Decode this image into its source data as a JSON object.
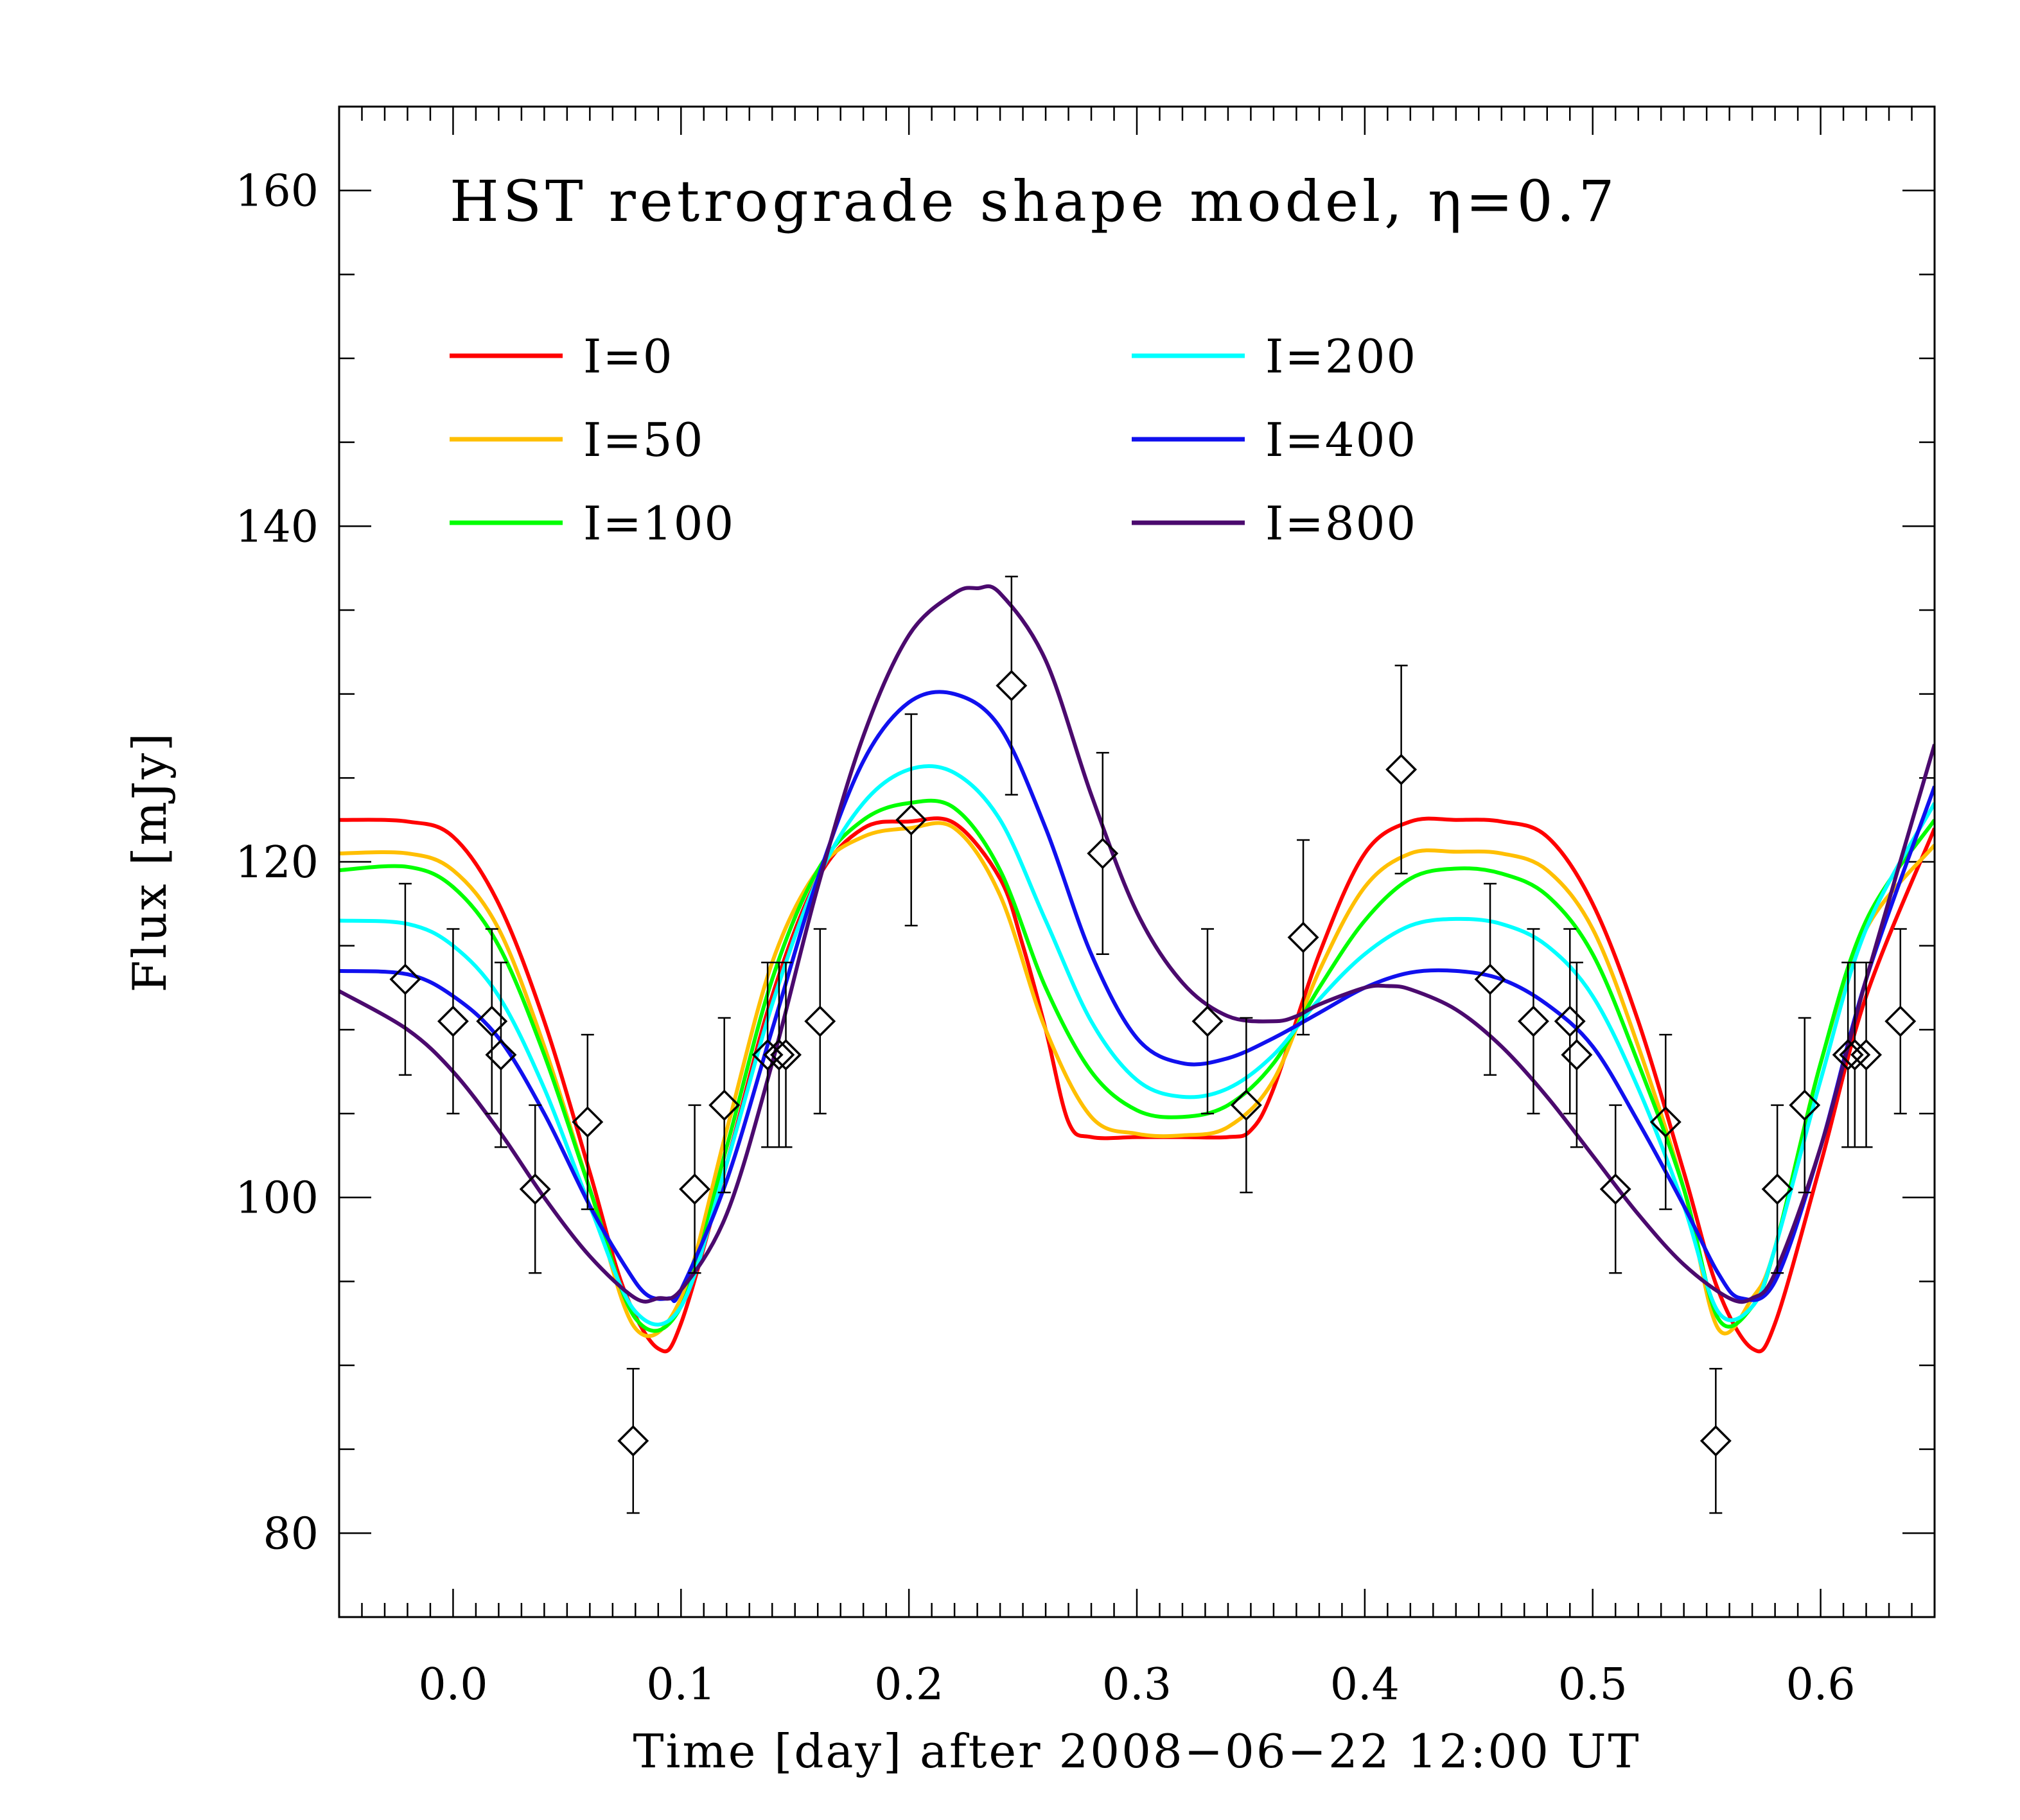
{
  "chart_data": {
    "type": "line",
    "title": "HST retrograde shape model, η=0.7",
    "xlabel": "Time [day] after 2008−06−22 12:00 UT",
    "ylabel": "Flux [mJy]",
    "xlim": [
      -0.05,
      0.65
    ],
    "ylim": [
      75,
      165
    ],
    "x_ticks": [
      "0.0",
      "0.1",
      "0.2",
      "0.3",
      "0.4",
      "0.5",
      "0.6"
    ],
    "x_tick_values": [
      0.0,
      0.1,
      0.2,
      0.3,
      0.4,
      0.5,
      0.6
    ],
    "y_ticks": [
      "80",
      "100",
      "120",
      "140",
      "160"
    ],
    "y_tick_values": [
      80,
      100,
      120,
      140,
      160
    ],
    "legend_position": "top",
    "series": [
      {
        "name": "I=0",
        "color": "#ff0000",
        "x": [
          -0.05,
          -0.02,
          0.0,
          0.02,
          0.04,
          0.06,
          0.075,
          0.09,
          0.1,
          0.12,
          0.14,
          0.16,
          0.18,
          0.2,
          0.22,
          0.24,
          0.25,
          0.26,
          0.27,
          0.28,
          0.3,
          0.32,
          0.34,
          0.35,
          0.36,
          0.38,
          0.4,
          0.42,
          0.44,
          0.46,
          0.48,
          0.5,
          0.52,
          0.54,
          0.555,
          0.57,
          0.58,
          0.6,
          0.62,
          0.65
        ],
        "y": [
          122.5,
          122.4,
          121.5,
          117.5,
          110.5,
          101.5,
          94.5,
          91.0,
          92.5,
          102,
          112,
          119,
          122,
          122.4,
          122.3,
          119,
          115,
          110,
          104.5,
          103.6,
          103.6,
          103.6,
          103.6,
          104.0,
          106.5,
          114.5,
          120.5,
          122.4,
          122.5,
          122.4,
          121.5,
          117.5,
          110.5,
          101.5,
          94.5,
          91.0,
          92.5,
          102,
          112,
          122.0
        ]
      },
      {
        "name": "I=50",
        "color": "#ffbf00",
        "x": [
          -0.05,
          -0.02,
          0.0,
          0.02,
          0.04,
          0.06,
          0.08,
          0.1,
          0.12,
          0.14,
          0.16,
          0.18,
          0.2,
          0.22,
          0.24,
          0.26,
          0.28,
          0.3,
          0.32,
          0.34,
          0.36,
          0.38,
          0.4,
          0.42,
          0.44,
          0.46,
          0.48,
          0.5,
          0.52,
          0.54,
          0.555,
          0.57,
          0.58,
          0.6,
          0.62,
          0.65
        ],
        "y": [
          120.5,
          120.5,
          119.5,
          116,
          109,
          100.5,
          92.2,
          94,
          104,
          114,
          119.5,
          121.5,
          122,
          122,
          118,
          110,
          104.8,
          103.8,
          103.7,
          104.2,
          107,
          113.5,
          118.5,
          120.5,
          120.6,
          120.5,
          119.5,
          116,
          109,
          100.5,
          92.2,
          94,
          97,
          108,
          116,
          121.0
        ]
      },
      {
        "name": "I=100",
        "color": "#00ff00",
        "x": [
          -0.05,
          -0.02,
          0.0,
          0.02,
          0.04,
          0.06,
          0.08,
          0.1,
          0.12,
          0.14,
          0.16,
          0.18,
          0.2,
          0.22,
          0.24,
          0.26,
          0.28,
          0.3,
          0.32,
          0.34,
          0.36,
          0.38,
          0.4,
          0.42,
          0.44,
          0.46,
          0.48,
          0.5,
          0.52,
          0.54,
          0.555,
          0.57,
          0.58,
          0.6,
          0.62,
          0.65
        ],
        "y": [
          119.5,
          119.7,
          118.5,
          115,
          108.5,
          100.5,
          92.8,
          93.5,
          103,
          113,
          119.5,
          122.5,
          123.5,
          123.2,
          119.5,
          112.5,
          107.5,
          105.2,
          104.8,
          105.5,
          108,
          112.5,
          116.5,
          119,
          119.6,
          119.3,
          118,
          114.5,
          108,
          100.5,
          92.8,
          93.5,
          97,
          108,
          116.5,
          122.5
        ]
      },
      {
        "name": "I=200",
        "color": "#00ffff",
        "x": [
          -0.05,
          -0.02,
          0.0,
          0.02,
          0.04,
          0.06,
          0.08,
          0.1,
          0.12,
          0.14,
          0.16,
          0.18,
          0.2,
          0.22,
          0.24,
          0.26,
          0.28,
          0.3,
          0.32,
          0.34,
          0.36,
          0.38,
          0.4,
          0.42,
          0.44,
          0.46,
          0.48,
          0.5,
          0.52,
          0.54,
          0.555,
          0.57,
          0.58,
          0.6,
          0.62,
          0.65
        ],
        "y": [
          116.5,
          116.3,
          115,
          112,
          106.5,
          99.5,
          93.2,
          93.5,
          102,
          111.5,
          119,
          123.5,
          125.5,
          125.3,
          122.5,
          116.5,
          110.5,
          107,
          106,
          106.5,
          108.5,
          111.8,
          114.5,
          116.2,
          116.6,
          116.3,
          115,
          112,
          106.5,
          99.5,
          93.2,
          93.5,
          97,
          107,
          116,
          123.5
        ]
      },
      {
        "name": "I=400",
        "color": "#1010ee",
        "x": [
          -0.05,
          -0.02,
          0.0,
          0.02,
          0.04,
          0.06,
          0.075,
          0.085,
          0.095,
          0.1,
          0.12,
          0.14,
          0.16,
          0.18,
          0.2,
          0.22,
          0.24,
          0.26,
          0.28,
          0.3,
          0.32,
          0.34,
          0.36,
          0.38,
          0.4,
          0.42,
          0.44,
          0.46,
          0.48,
          0.5,
          0.52,
          0.54,
          0.555,
          0.565,
          0.58,
          0.6,
          0.62,
          0.65
        ],
        "y": [
          113.5,
          113.3,
          112,
          109.5,
          105,
          99.5,
          96,
          94.2,
          94,
          94.5,
          101,
          110,
          119,
          126,
          129.5,
          130,
          128,
          122,
          114.5,
          109.5,
          108,
          108.3,
          109.5,
          111,
          112.5,
          113.4,
          113.5,
          113,
          111.5,
          109,
          104.5,
          99.5,
          95.5,
          94,
          95,
          103,
          113,
          124.5
        ]
      },
      {
        "name": "I=800",
        "color": "#4b0a6e",
        "x": [
          -0.05,
          -0.02,
          0.0,
          0.02,
          0.04,
          0.06,
          0.08,
          0.09,
          0.1,
          0.12,
          0.14,
          0.16,
          0.18,
          0.2,
          0.22,
          0.23,
          0.24,
          0.26,
          0.28,
          0.3,
          0.32,
          0.34,
          0.36,
          0.37,
          0.38,
          0.4,
          0.41,
          0.42,
          0.44,
          0.46,
          0.48,
          0.5,
          0.52,
          0.54,
          0.56,
          0.57,
          0.58,
          0.6,
          0.62,
          0.65
        ],
        "y": [
          112.3,
          110,
          107.5,
          104,
          100,
          96.5,
          94,
          94,
          94.5,
          99,
          108,
          118.5,
          127.5,
          133.5,
          136,
          136.3,
          136,
          132,
          124,
          117,
          112.8,
          110.8,
          110.5,
          110.8,
          111.5,
          112.5,
          112.6,
          112.4,
          111.2,
          109,
          106,
          102.5,
          99,
          96,
          94,
          94,
          95.5,
          103,
          113,
          127
        ]
      }
    ],
    "data_points": {
      "name": "Observations",
      "marker": "diamond",
      "x": [
        -0.021,
        0.0,
        0.017,
        0.021,
        0.036,
        0.059,
        0.079,
        0.106,
        0.119,
        0.138,
        0.143,
        0.146,
        0.161,
        0.201,
        0.245,
        0.285,
        0.331,
        0.348,
        0.373,
        0.416,
        0.455,
        0.474,
        0.49,
        0.493,
        0.51,
        0.532,
        0.554,
        0.581,
        0.593,
        0.612,
        0.615,
        0.62,
        0.635
      ],
      "y": [
        113.0,
        110.5,
        110.5,
        108.5,
        100.5,
        104.5,
        85.5,
        100.5,
        105.5,
        108.5,
        108.5,
        108.5,
        110.5,
        122.5,
        130.5,
        120.5,
        110.5,
        105.5,
        115.5,
        125.5,
        113.0,
        110.5,
        110.5,
        108.5,
        100.5,
        104.5,
        85.5,
        100.5,
        105.5,
        108.5,
        108.5,
        108.5,
        110.5
      ],
      "err": [
        5.7,
        5.5,
        5.5,
        5.5,
        5.0,
        5.2,
        4.3,
        5.0,
        5.2,
        5.5,
        5.5,
        5.5,
        5.5,
        6.3,
        6.5,
        6.0,
        5.5,
        5.2,
        5.8,
        6.2,
        5.7,
        5.5,
        5.5,
        5.5,
        5.0,
        5.2,
        4.3,
        5.0,
        5.2,
        5.5,
        5.5,
        5.5,
        5.5
      ]
    }
  }
}
